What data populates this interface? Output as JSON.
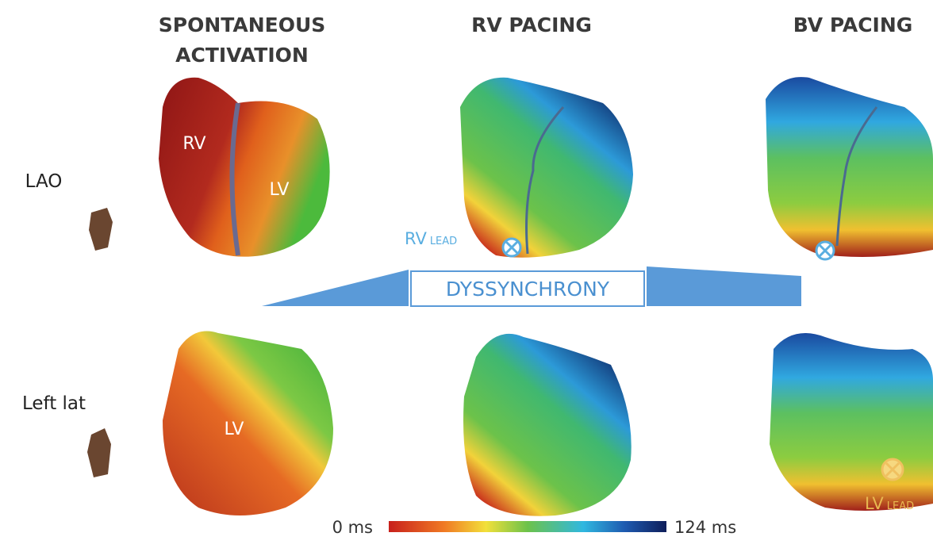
{
  "columns": [
    {
      "title_lines": [
        "SPONTANEOUS",
        "ACTIVATION"
      ]
    },
    {
      "title_lines": [
        "RV PACING"
      ]
    },
    {
      "title_lines": [
        "BV PACING"
      ]
    }
  ],
  "rows": [
    "LAO",
    "Left lat"
  ],
  "heart_labels": {
    "rv": "RV",
    "lv_top": "LV",
    "lv_bottom": "LV"
  },
  "rv_lead": {
    "main": "RV",
    "sub": "LEAD"
  },
  "lv_lead": {
    "main": "LV",
    "sub": "LEAD"
  },
  "banner": "DYSSYNCHRONY",
  "scale": {
    "min_label": "0 ms",
    "max_label": "124 ms"
  }
}
